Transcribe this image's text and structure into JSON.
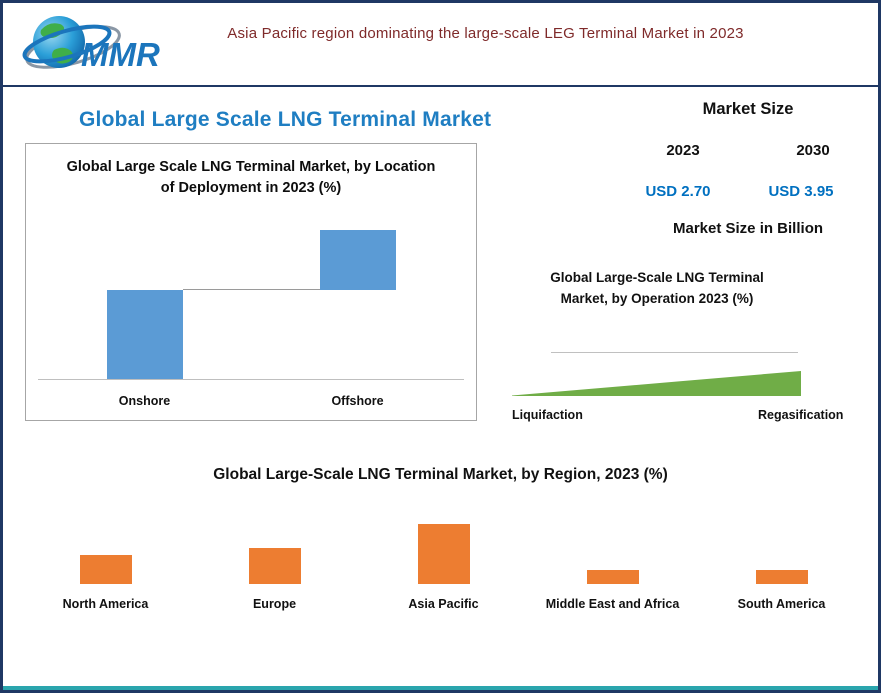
{
  "banner": {
    "text": "Asia Pacific region dominating the large-scale LEG Terminal Market in 2023"
  },
  "logo": {
    "label": "MMR"
  },
  "main_title": "Global Large Scale LNG Terminal Market",
  "market_size": {
    "title": "Market Size",
    "year_left": "2023",
    "year_right": "2030",
    "value_left": "USD 2.70",
    "value_right": "USD 3.95",
    "unit": "Market Size in Billion"
  },
  "colors": {
    "title_blue": "#1F7EC2",
    "bar_blue": "#5B9BD5",
    "bar_orange": "#ED7D31",
    "wedge_green": "#70AD47",
    "value_blue": "#0070C0",
    "banner_maroon": "#7F2A2A",
    "border_navy": "#1F3864",
    "border_teal": "#2AA5AD"
  },
  "chart_data": [
    {
      "type": "bar",
      "subtype": "waterfall",
      "title": "Global Large Scale LNG Terminal Market, by Location of  Deployment in 2023 (%)",
      "categories": [
        "Onshore",
        "Offshore"
      ],
      "values": [
        60,
        40
      ],
      "ylim": [
        0,
        100
      ],
      "bar_color": "#5B9BD5",
      "note": "Offshore bar floats from the Onshore cumulative level up to 100%; values estimated from bar heights"
    },
    {
      "type": "area",
      "title": "Global Large-Scale LNG Terminal Market, by Operation 2023 (%)",
      "categories": [
        "Liquifaction",
        "Regasification"
      ],
      "values": [
        2,
        100
      ],
      "color": "#70AD47",
      "note": "green wedge rising left to right from Liquifaction (small) to Regasification (large); shape estimate"
    },
    {
      "type": "bar",
      "title": "Global Large-Scale LNG Terminal Market, by Region, 2023 (%)",
      "categories": [
        "North America",
        "Europe",
        "Asia Pacific",
        "Middle East and Africa",
        "South America"
      ],
      "values": [
        20,
        25,
        42,
        10,
        10
      ],
      "ylim": [
        0,
        50
      ],
      "bar_color": "#ED7D31",
      "note": "values estimated from bar heights; Asia Pacific dominates"
    }
  ]
}
